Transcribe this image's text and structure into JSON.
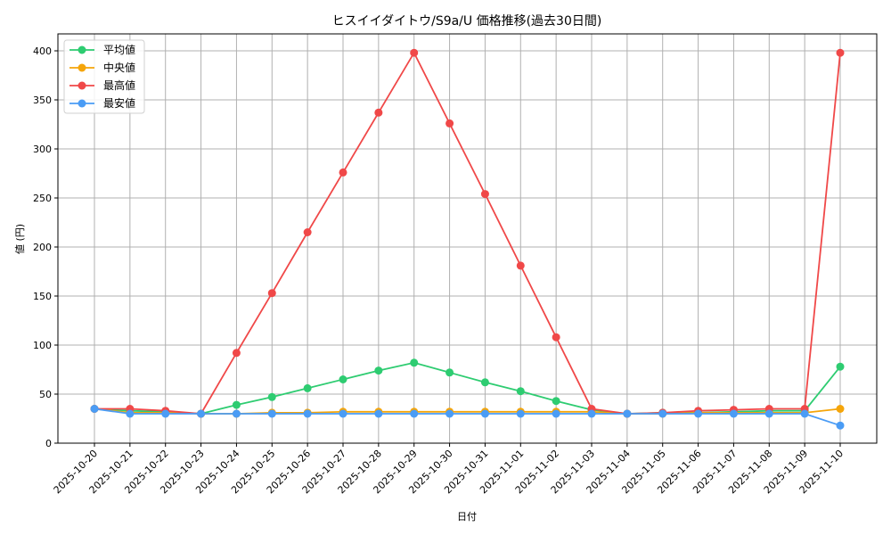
{
  "chart_data": {
    "type": "line",
    "title": "ヒスイイダイトウ/S9a/U 価格推移(過去30日間)",
    "xlabel": "日付",
    "ylabel": "値 (円)",
    "ylim": [
      0,
      418
    ],
    "yticks": [
      0,
      50,
      100,
      150,
      200,
      250,
      300,
      350,
      400
    ],
    "grid": true,
    "legend_position": "upper left",
    "categories": [
      "2025-10-20",
      "2025-10-21",
      "2025-10-22",
      "2025-10-23",
      "2025-10-24",
      "2025-10-25",
      "2025-10-26",
      "2025-10-27",
      "2025-10-28",
      "2025-10-29",
      "2025-10-30",
      "2025-10-31",
      "2025-11-01",
      "2025-11-02",
      "2025-11-03",
      "2025-11-04",
      "2025-11-05",
      "2025-11-06",
      "2025-11-07",
      "2025-11-08",
      "2025-11-09",
      "2025-11-10"
    ],
    "series": [
      {
        "name": "平均値",
        "color": "#2ecc71",
        "values": [
          35,
          33,
          32,
          30,
          39,
          47,
          56,
          65,
          74,
          82,
          72,
          62,
          53,
          43,
          34,
          30,
          31,
          31,
          32,
          33,
          33,
          78
        ]
      },
      {
        "name": "中央値",
        "color": "#f5a50a",
        "values": [
          35,
          31,
          31,
          30,
          30,
          31,
          31,
          32,
          32,
          32,
          32,
          32,
          32,
          32,
          32,
          30,
          30,
          31,
          31,
          31,
          31,
          35
        ]
      },
      {
        "name": "最高値",
        "color": "#f04848",
        "values": [
          35,
          35,
          33,
          30,
          92,
          153,
          215,
          276,
          337,
          398,
          326,
          254,
          181,
          108,
          35,
          30,
          31,
          33,
          34,
          35,
          35,
          398
        ]
      },
      {
        "name": "最安値",
        "color": "#4a9cf5",
        "values": [
          35,
          30,
          30,
          30,
          30,
          30,
          30,
          30,
          30,
          30,
          30,
          30,
          30,
          30,
          30,
          30,
          30,
          30,
          30,
          30,
          30,
          18
        ]
      }
    ]
  }
}
